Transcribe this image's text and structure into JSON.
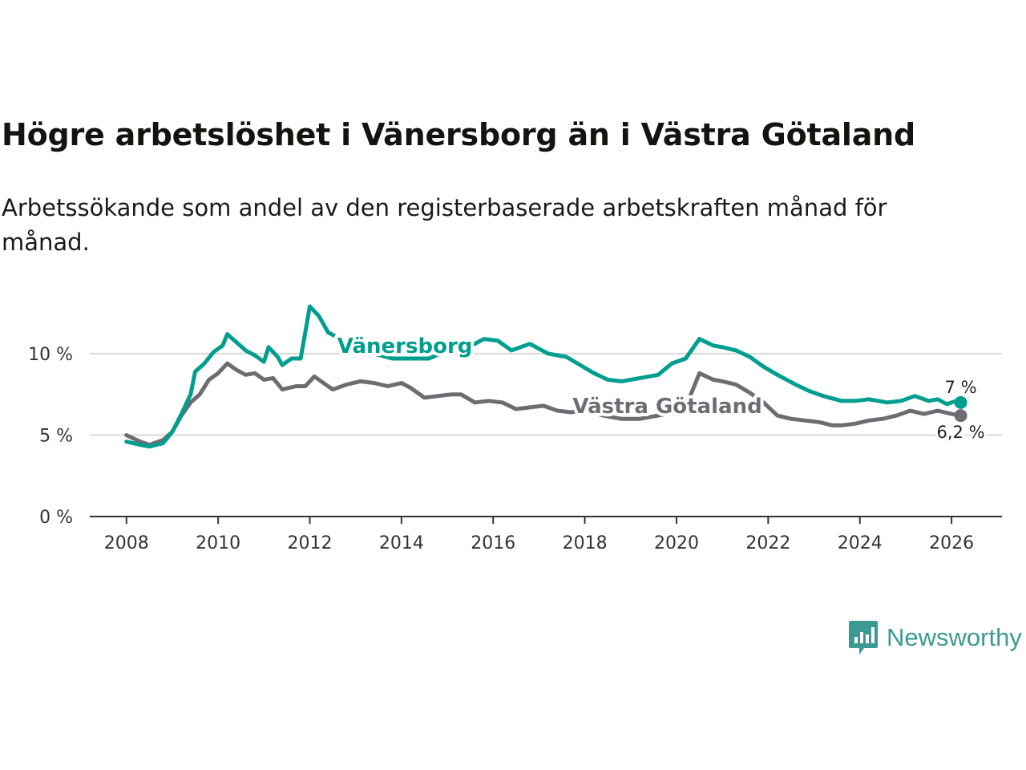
{
  "title": "Högre arbetslöshet i Vänersborg än i Västra Götaland",
  "subtitle": "Arbetssökande som andel av den registerbaserade arbetskraften månad för månad.",
  "brand": {
    "name": "Newsworthy",
    "color": "#3b9a92"
  },
  "chart_data": {
    "type": "line",
    "title": "Högre arbetslöshet i Vänersborg än i Västra Götaland",
    "xlabel": "",
    "ylabel": "",
    "xlim": [
      2007.2,
      2027.1
    ],
    "ylim": [
      0,
      13
    ],
    "grid": true,
    "x_ticks": [
      2008,
      2010,
      2012,
      2014,
      2016,
      2018,
      2020,
      2022,
      2024,
      2026
    ],
    "x_tick_labels": [
      "2008",
      "2010",
      "2012",
      "2014",
      "2016",
      "2018",
      "2020",
      "2022",
      "2024",
      "2026"
    ],
    "y_ticks": [
      0,
      5,
      10
    ],
    "y_tick_labels": [
      "0 %",
      "5 %",
      "10 %"
    ],
    "series": [
      {
        "name": "Vänersborg",
        "color": "#009e8e",
        "end_label": "7 %",
        "points": [
          [
            2008.0,
            4.6
          ],
          [
            2008.3,
            4.4
          ],
          [
            2008.5,
            4.3
          ],
          [
            2008.8,
            4.5
          ],
          [
            2009.0,
            5.2
          ],
          [
            2009.2,
            6.3
          ],
          [
            2009.4,
            7.5
          ],
          [
            2009.5,
            8.9
          ],
          [
            2009.7,
            9.4
          ],
          [
            2009.9,
            10.1
          ],
          [
            2010.1,
            10.5
          ],
          [
            2010.2,
            11.2
          ],
          [
            2010.4,
            10.7
          ],
          [
            2010.6,
            10.2
          ],
          [
            2010.8,
            9.9
          ],
          [
            2011.0,
            9.5
          ],
          [
            2011.1,
            10.4
          ],
          [
            2011.3,
            9.8
          ],
          [
            2011.4,
            9.3
          ],
          [
            2011.6,
            9.7
          ],
          [
            2011.8,
            9.7
          ],
          [
            2012.0,
            12.9
          ],
          [
            2012.2,
            12.3
          ],
          [
            2012.4,
            11.3
          ],
          [
            2012.6,
            11.0
          ],
          [
            2013.0,
            10.4
          ],
          [
            2013.4,
            10.0
          ],
          [
            2013.8,
            9.7
          ],
          [
            2014.2,
            9.7
          ],
          [
            2014.6,
            9.7
          ],
          [
            2015.0,
            10.2
          ],
          [
            2015.4,
            10.3
          ],
          [
            2015.8,
            10.9
          ],
          [
            2016.1,
            10.8
          ],
          [
            2016.4,
            10.2
          ],
          [
            2016.8,
            10.6
          ],
          [
            2017.2,
            10.0
          ],
          [
            2017.6,
            9.8
          ],
          [
            2017.9,
            9.3
          ],
          [
            2018.2,
            8.8
          ],
          [
            2018.5,
            8.4
          ],
          [
            2018.8,
            8.3
          ],
          [
            2019.2,
            8.5
          ],
          [
            2019.6,
            8.7
          ],
          [
            2019.9,
            9.4
          ],
          [
            2020.2,
            9.7
          ],
          [
            2020.5,
            10.9
          ],
          [
            2020.8,
            10.5
          ],
          [
            2021.0,
            10.4
          ],
          [
            2021.3,
            10.2
          ],
          [
            2021.6,
            9.8
          ],
          [
            2021.9,
            9.2
          ],
          [
            2022.2,
            8.7
          ],
          [
            2022.6,
            8.1
          ],
          [
            2022.9,
            7.7
          ],
          [
            2023.2,
            7.4
          ],
          [
            2023.6,
            7.1
          ],
          [
            2023.9,
            7.1
          ],
          [
            2024.2,
            7.2
          ],
          [
            2024.6,
            7.0
          ],
          [
            2024.9,
            7.1
          ],
          [
            2025.2,
            7.4
          ],
          [
            2025.5,
            7.1
          ],
          [
            2025.7,
            7.2
          ],
          [
            2025.9,
            6.9
          ],
          [
            2026.1,
            7.1
          ],
          [
            2026.2,
            7.0
          ]
        ]
      },
      {
        "name": "Västra Götaland",
        "color": "#6e6c72",
        "end_label": "6,2 %",
        "points": [
          [
            2008.0,
            5.0
          ],
          [
            2008.3,
            4.6
          ],
          [
            2008.5,
            4.4
          ],
          [
            2008.8,
            4.7
          ],
          [
            2009.0,
            5.2
          ],
          [
            2009.2,
            6.2
          ],
          [
            2009.4,
            7.0
          ],
          [
            2009.6,
            7.5
          ],
          [
            2009.8,
            8.4
          ],
          [
            2010.0,
            8.8
          ],
          [
            2010.2,
            9.4
          ],
          [
            2010.4,
            9.0
          ],
          [
            2010.6,
            8.7
          ],
          [
            2010.8,
            8.8
          ],
          [
            2011.0,
            8.4
          ],
          [
            2011.2,
            8.5
          ],
          [
            2011.4,
            7.8
          ],
          [
            2011.7,
            8.0
          ],
          [
            2011.9,
            8.0
          ],
          [
            2012.1,
            8.6
          ],
          [
            2012.3,
            8.2
          ],
          [
            2012.5,
            7.8
          ],
          [
            2012.8,
            8.1
          ],
          [
            2013.1,
            8.3
          ],
          [
            2013.4,
            8.2
          ],
          [
            2013.7,
            8.0
          ],
          [
            2014.0,
            8.2
          ],
          [
            2014.2,
            7.9
          ],
          [
            2014.5,
            7.3
          ],
          [
            2014.8,
            7.4
          ],
          [
            2015.1,
            7.5
          ],
          [
            2015.3,
            7.5
          ],
          [
            2015.6,
            7.0
          ],
          [
            2015.9,
            7.1
          ],
          [
            2016.2,
            7.0
          ],
          [
            2016.5,
            6.6
          ],
          [
            2016.8,
            6.7
          ],
          [
            2017.1,
            6.8
          ],
          [
            2017.4,
            6.5
          ],
          [
            2017.7,
            6.4
          ],
          [
            2018.0,
            6.5
          ],
          [
            2018.4,
            6.2
          ],
          [
            2018.8,
            6.0
          ],
          [
            2019.2,
            6.0
          ],
          [
            2019.6,
            6.2
          ],
          [
            2020.0,
            6.4
          ],
          [
            2020.3,
            7.4
          ],
          [
            2020.5,
            8.8
          ],
          [
            2020.8,
            8.4
          ],
          [
            2021.0,
            8.3
          ],
          [
            2021.3,
            8.1
          ],
          [
            2021.6,
            7.6
          ],
          [
            2021.9,
            7.0
          ],
          [
            2022.2,
            6.2
          ],
          [
            2022.5,
            6.0
          ],
          [
            2022.8,
            5.9
          ],
          [
            2023.1,
            5.8
          ],
          [
            2023.4,
            5.6
          ],
          [
            2023.6,
            5.6
          ],
          [
            2023.9,
            5.7
          ],
          [
            2024.2,
            5.9
          ],
          [
            2024.5,
            6.0
          ],
          [
            2024.8,
            6.2
          ],
          [
            2025.1,
            6.5
          ],
          [
            2025.4,
            6.3
          ],
          [
            2025.7,
            6.5
          ],
          [
            2026.0,
            6.3
          ],
          [
            2026.2,
            6.2
          ]
        ]
      }
    ]
  }
}
